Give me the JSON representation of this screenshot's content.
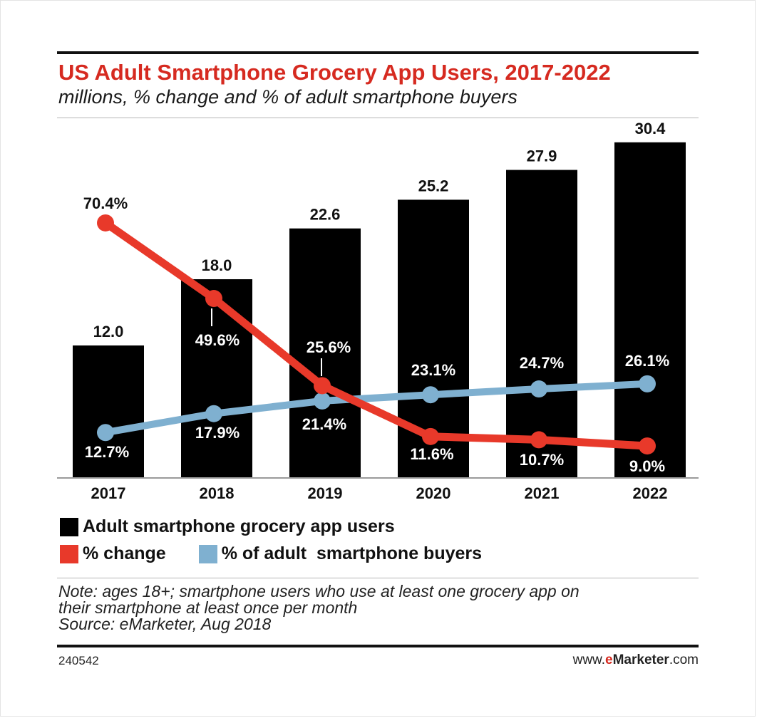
{
  "header": {
    "title": "US Adult Smartphone Grocery App Users, 2017-2022",
    "subtitle": "millions, % change and % of adult smartphone buyers"
  },
  "chart_data": {
    "type": "bar",
    "categories": [
      "2017",
      "2018",
      "2019",
      "2020",
      "2021",
      "2022"
    ],
    "series": [
      {
        "name": "Adult smartphone grocery app users",
        "type": "bar",
        "color": "#000000",
        "values": [
          12.0,
          18.0,
          22.6,
          25.2,
          27.9,
          30.4
        ],
        "labels": [
          "12.0",
          "18.0",
          "22.6",
          "25.2",
          "27.9",
          "30.4"
        ]
      },
      {
        "name": "% change",
        "type": "line",
        "color": "#e8392a",
        "values": [
          70.4,
          49.6,
          25.6,
          11.6,
          10.7,
          9.0
        ],
        "labels": [
          "70.4%",
          "49.6%",
          "25.6%",
          "11.6%",
          "10.7%",
          "9.0%"
        ]
      },
      {
        "name": "% of adult  smartphone buyers",
        "type": "line",
        "color": "#7fb0d0",
        "values": [
          12.7,
          17.9,
          21.4,
          23.1,
          24.7,
          26.1
        ],
        "labels": [
          "12.7%",
          "17.9%",
          "21.4%",
          "23.1%",
          "24.7%",
          "26.1%"
        ]
      }
    ],
    "grid": false,
    "legend_position": "bottom"
  },
  "footer": {
    "note_line1": "Note: ages 18+; smartphone users who use at least one grocery app on",
    "note_line2": "their smartphone at least once per month",
    "source": "Source: eMarketer, Aug 2018",
    "chart_id": "240542",
    "brand_prefix": "www.",
    "brand_e": "e",
    "brand_name": "Marketer",
    "brand_suffix": ".com"
  }
}
